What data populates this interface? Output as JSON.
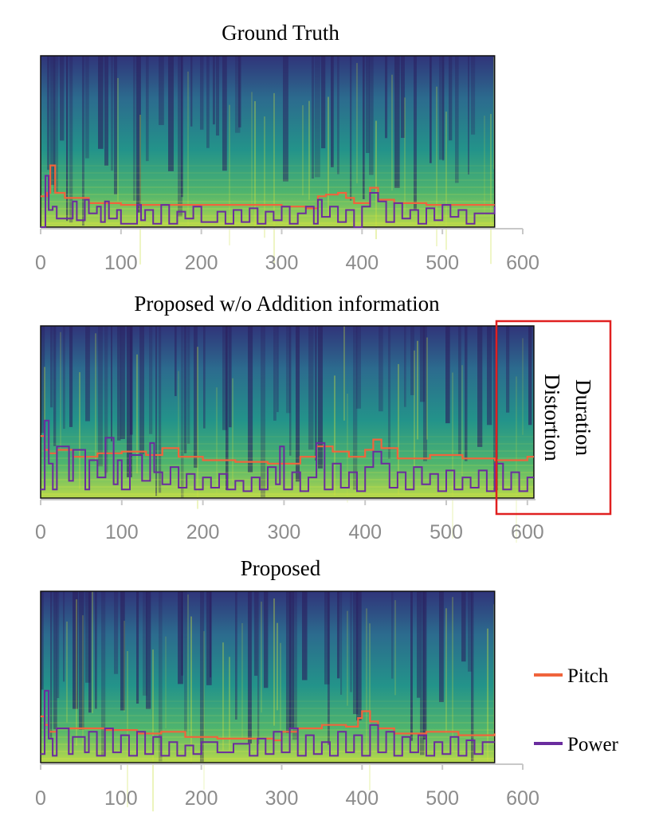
{
  "chart_data": [
    {
      "type": "spectrogram-with-lines",
      "title": "Ground Truth",
      "xticks": [
        0,
        100,
        200,
        300,
        400,
        500,
        600
      ],
      "xlim": [
        0,
        600
      ],
      "frames": 565,
      "series": [
        {
          "name": "Pitch",
          "x": [
            0,
            8,
            12,
            18,
            30,
            60,
            100,
            150,
            200,
            250,
            300,
            330,
            345,
            355,
            370,
            380,
            390,
            410,
            420,
            440,
            480,
            520,
            565
          ],
          "y": [
            0.18,
            0.2,
            0.36,
            0.2,
            0.17,
            0.14,
            0.13,
            0.13,
            0.13,
            0.13,
            0.12,
            0.11,
            0.18,
            0.19,
            0.2,
            0.17,
            0.14,
            0.23,
            0.16,
            0.14,
            0.13,
            0.13,
            0.13
          ]
        },
        {
          "name": "Power",
          "x": [
            0,
            6,
            10,
            15,
            20,
            40,
            45,
            55,
            60,
            70,
            75,
            80,
            85,
            95,
            100,
            120,
            125,
            130,
            140,
            150,
            160,
            170,
            180,
            190,
            200,
            220,
            230,
            240,
            250,
            260,
            270,
            280,
            290,
            300,
            310,
            320,
            330,
            340,
            345,
            350,
            360,
            370,
            380,
            390,
            400,
            410,
            420,
            430,
            440,
            450,
            460,
            470,
            480,
            490,
            500,
            510,
            520,
            530,
            540,
            565
          ],
          "y": [
            0.0,
            0.3,
            0.1,
            0.12,
            0.05,
            0.15,
            0.04,
            0.16,
            0.08,
            0.12,
            0.03,
            0.15,
            0.05,
            0.1,
            0.02,
            0.13,
            0.04,
            0.1,
            0.02,
            0.13,
            0.02,
            0.09,
            0.05,
            0.12,
            0.03,
            0.09,
            0.02,
            0.1,
            0.03,
            0.11,
            0.02,
            0.09,
            0.04,
            0.12,
            0.02,
            0.08,
            0.12,
            0.02,
            0.16,
            0.06,
            0.12,
            0.03,
            0.1,
            0.0,
            0.12,
            0.2,
            0.15,
            0.03,
            0.14,
            0.05,
            0.1,
            0.02,
            0.11,
            0.04,
            0.13,
            0.06,
            0.1,
            0.02,
            0.08,
            0.12
          ]
        }
      ]
    },
    {
      "type": "spectrogram-with-lines",
      "title": "Proposed w/o Addition information",
      "xticks": [
        0,
        100,
        200,
        300,
        400,
        500,
        600
      ],
      "xlim": [
        0,
        610
      ],
      "frames": 608,
      "series": [
        {
          "name": "Pitch",
          "x": [
            0,
            5,
            10,
            20,
            40,
            70,
            100,
            130,
            150,
            170,
            200,
            240,
            280,
            320,
            340,
            360,
            380,
            400,
            410,
            420,
            440,
            480,
            520,
            560,
            600,
            608
          ],
          "y": [
            0.36,
            0.28,
            0.26,
            0.28,
            0.24,
            0.26,
            0.27,
            0.25,
            0.29,
            0.24,
            0.22,
            0.21,
            0.2,
            0.24,
            0.3,
            0.27,
            0.24,
            0.28,
            0.34,
            0.29,
            0.23,
            0.25,
            0.23,
            0.22,
            0.24,
            0.24
          ]
        },
        {
          "name": "Power",
          "x": [
            0,
            5,
            10,
            15,
            20,
            35,
            40,
            55,
            60,
            70,
            80,
            90,
            95,
            100,
            110,
            125,
            135,
            140,
            150,
            160,
            170,
            180,
            190,
            200,
            210,
            220,
            230,
            240,
            250,
            260,
            270,
            280,
            290,
            295,
            300,
            310,
            320,
            330,
            340,
            350,
            360,
            370,
            380,
            390,
            400,
            410,
            420,
            430,
            440,
            450,
            460,
            470,
            480,
            490,
            500,
            510,
            520,
            530,
            540,
            550,
            560,
            570,
            580,
            590,
            600,
            608
          ],
          "y": [
            0.05,
            0.45,
            0.2,
            0.05,
            0.3,
            0.1,
            0.28,
            0.05,
            0.22,
            0.12,
            0.35,
            0.08,
            0.22,
            0.05,
            0.25,
            0.1,
            0.32,
            0.15,
            0.08,
            0.18,
            0.06,
            0.14,
            0.05,
            0.12,
            0.06,
            0.14,
            0.05,
            0.1,
            0.04,
            0.12,
            0.05,
            0.18,
            0.08,
            0.3,
            0.05,
            0.15,
            0.04,
            0.12,
            0.32,
            0.05,
            0.2,
            0.06,
            0.15,
            0.04,
            0.18,
            0.27,
            0.2,
            0.06,
            0.15,
            0.05,
            0.18,
            0.08,
            0.14,
            0.04,
            0.16,
            0.05,
            0.12,
            0.06,
            0.16,
            0.04,
            0.2,
            0.05,
            0.15,
            0.04,
            0.12,
            0.12
          ]
        }
      ],
      "annotation": {
        "label_line1": "Duration",
        "label_line2": "Distortion",
        "x_range": [
          565,
          700
        ]
      }
    },
    {
      "type": "spectrogram-with-lines",
      "title": "Proposed",
      "xticks": [
        0,
        100,
        200,
        300,
        400,
        500,
        600
      ],
      "xlim": [
        0,
        600
      ],
      "frames": 565,
      "series": [
        {
          "name": "Pitch",
          "x": [
            0,
            5,
            10,
            20,
            40,
            80,
            120,
            150,
            180,
            220,
            260,
            290,
            300,
            320,
            350,
            380,
            395,
            400,
            410,
            420,
            440,
            480,
            520,
            565
          ],
          "y": [
            0.27,
            0.22,
            0.18,
            0.2,
            0.2,
            0.19,
            0.17,
            0.18,
            0.15,
            0.14,
            0.14,
            0.13,
            0.18,
            0.2,
            0.22,
            0.21,
            0.26,
            0.3,
            0.24,
            0.2,
            0.17,
            0.18,
            0.16,
            0.17
          ]
        },
        {
          "name": "Power",
          "x": [
            0,
            5,
            10,
            15,
            20,
            35,
            40,
            55,
            60,
            70,
            80,
            90,
            100,
            110,
            120,
            130,
            140,
            150,
            160,
            170,
            180,
            190,
            200,
            220,
            240,
            260,
            270,
            280,
            290,
            300,
            310,
            320,
            330,
            340,
            350,
            360,
            370,
            380,
            390,
            400,
            410,
            420,
            430,
            440,
            450,
            460,
            470,
            480,
            490,
            500,
            510,
            520,
            530,
            540,
            550,
            565
          ],
          "y": [
            0.05,
            0.42,
            0.14,
            0.04,
            0.2,
            0.05,
            0.15,
            0.06,
            0.18,
            0.04,
            0.2,
            0.06,
            0.16,
            0.04,
            0.18,
            0.05,
            0.15,
            0.04,
            0.12,
            0.04,
            0.1,
            0.05,
            0.12,
            0.06,
            0.11,
            0.04,
            0.14,
            0.05,
            0.18,
            0.06,
            0.2,
            0.04,
            0.16,
            0.05,
            0.12,
            0.04,
            0.18,
            0.06,
            0.16,
            0.04,
            0.22,
            0.06,
            0.18,
            0.04,
            0.15,
            0.06,
            0.16,
            0.04,
            0.12,
            0.05,
            0.15,
            0.04,
            0.13,
            0.05,
            0.12,
            0.12
          ]
        }
      ]
    }
  ],
  "legend": {
    "items": [
      {
        "label": "Pitch",
        "color": "#f0643c"
      },
      {
        "label": "Power",
        "color": "#6a2c9e"
      }
    ]
  },
  "annotation_color": "#e02020"
}
